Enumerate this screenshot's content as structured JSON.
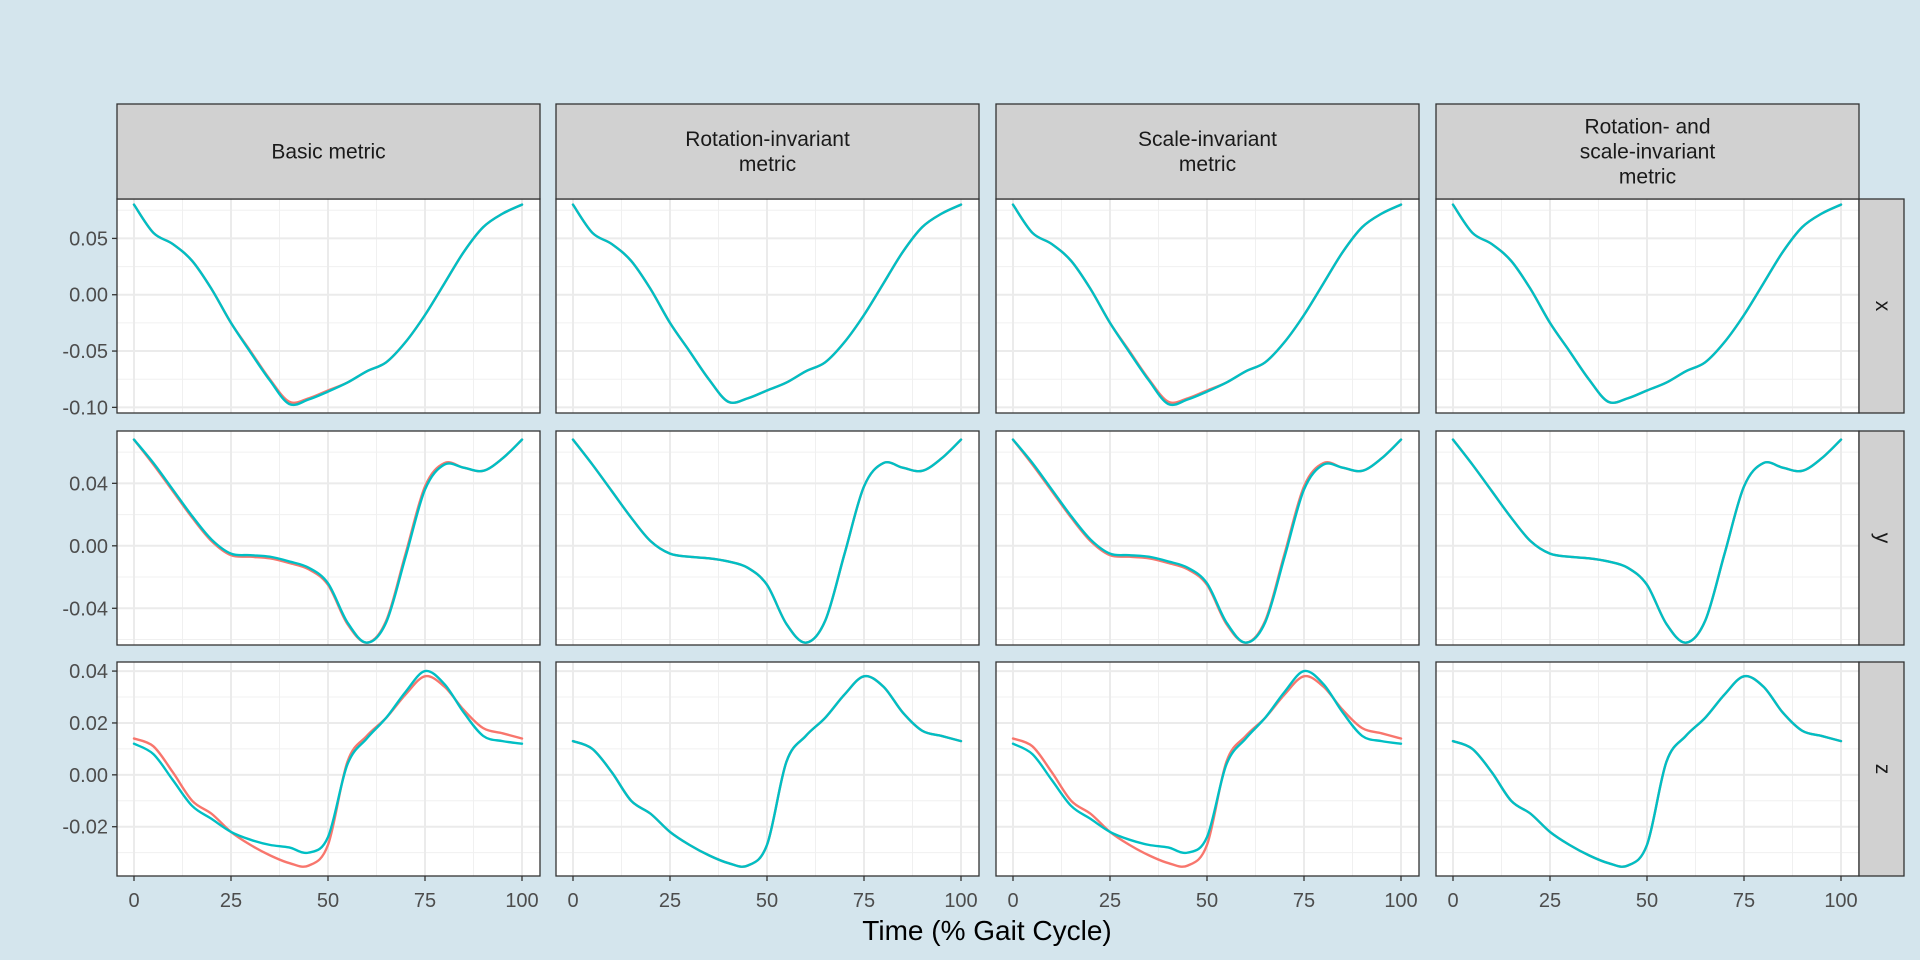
{
  "chart_data": {
    "type": "line",
    "xlabel": "Time (% Gait Cycle)",
    "ylabel": "",
    "xlim": [
      0,
      100
    ],
    "x_ticks": [
      "0",
      "25",
      "50",
      "75",
      "100"
    ],
    "grid": true,
    "legend": "none",
    "columns": [
      {
        "lines": [
          "Basic metric"
        ]
      },
      {
        "lines": [
          "Rotation-invariant",
          "metric"
        ]
      },
      {
        "lines": [
          "Scale-invariant",
          "metric"
        ]
      },
      {
        "lines": [
          "Rotation- and",
          "scale-invariant",
          "metric"
        ]
      }
    ],
    "rows": [
      {
        "label": "x",
        "ylim": [
          -0.105,
          0.085
        ],
        "yticks": [
          0.05,
          0.0,
          -0.05,
          -0.1
        ],
        "ytick_labels": [
          "0.05",
          "0.00",
          "-0.05",
          "-0.10"
        ]
      },
      {
        "label": "y",
        "ylim": [
          -0.0635,
          0.0735
        ],
        "yticks": [
          0.04,
          0.0,
          -0.04
        ],
        "ytick_labels": [
          "0.04",
          "0.00",
          "-0.04"
        ]
      },
      {
        "label": "z",
        "ylim": [
          -0.039,
          0.0435
        ],
        "yticks": [
          0.04,
          0.02,
          0.0,
          -0.02
        ],
        "ytick_labels": [
          "0.04",
          "0.02",
          "0.00",
          "-0.02"
        ]
      }
    ],
    "x": [
      0,
      5,
      10,
      15,
      20,
      25,
      30,
      35,
      40,
      45,
      50,
      55,
      60,
      65,
      70,
      75,
      80,
      85,
      90,
      95,
      100
    ],
    "series": [
      {
        "color": "#F8766D",
        "panels": [
          [
            [
              0.08,
              0.055,
              0.045,
              0.03,
              0.005,
              -0.025,
              -0.05,
              -0.075,
              -0.095,
              -0.092,
              -0.085,
              -0.078,
              -0.068,
              -0.06,
              -0.042,
              -0.018,
              0.01,
              0.038,
              0.06,
              0.072,
              0.08
            ],
            [
              0.068,
              0.052,
              0.035,
              0.018,
              0.003,
              -0.006,
              -0.007,
              -0.008,
              -0.011,
              -0.015,
              -0.025,
              -0.05,
              -0.062,
              -0.048,
              -0.005,
              0.038,
              0.053,
              0.05,
              0.048,
              0.056,
              0.068
            ],
            [
              0.014,
              0.011,
              0.001,
              -0.01,
              -0.015,
              -0.022,
              -0.027,
              -0.031,
              -0.034,
              -0.035,
              -0.027,
              0.005,
              0.015,
              0.022,
              0.031,
              0.038,
              0.034,
              0.025,
              0.018,
              0.016,
              0.014
            ]
          ],
          [
            [
              0.08,
              0.055,
              0.045,
              0.03,
              0.005,
              -0.025,
              -0.05,
              -0.075,
              -0.095,
              -0.092,
              -0.085,
              -0.078,
              -0.068,
              -0.06,
              -0.042,
              -0.018,
              0.01,
              0.038,
              0.06,
              0.072,
              0.08
            ],
            [
              0.068,
              0.052,
              0.035,
              0.018,
              0.003,
              -0.005,
              -0.007,
              -0.008,
              -0.01,
              -0.014,
              -0.025,
              -0.05,
              -0.062,
              -0.048,
              -0.005,
              0.038,
              0.053,
              0.05,
              0.048,
              0.056,
              0.068
            ],
            [
              0.013,
              0.01,
              0.001,
              -0.01,
              -0.015,
              -0.022,
              -0.027,
              -0.031,
              -0.034,
              -0.035,
              -0.027,
              0.005,
              0.015,
              0.022,
              0.031,
              0.038,
              0.034,
              0.024,
              0.017,
              0.015,
              0.013
            ]
          ],
          [
            [
              0.08,
              0.055,
              0.045,
              0.03,
              0.005,
              -0.025,
              -0.05,
              -0.075,
              -0.095,
              -0.092,
              -0.085,
              -0.078,
              -0.068,
              -0.06,
              -0.042,
              -0.018,
              0.01,
              0.038,
              0.06,
              0.072,
              0.08
            ],
            [
              0.068,
              0.052,
              0.035,
              0.018,
              0.003,
              -0.006,
              -0.007,
              -0.008,
              -0.011,
              -0.015,
              -0.025,
              -0.05,
              -0.062,
              -0.048,
              -0.005,
              0.038,
              0.053,
              0.05,
              0.048,
              0.056,
              0.068
            ],
            [
              0.014,
              0.011,
              0.001,
              -0.01,
              -0.015,
              -0.022,
              -0.027,
              -0.031,
              -0.034,
              -0.035,
              -0.027,
              0.005,
              0.015,
              0.022,
              0.031,
              0.038,
              0.034,
              0.025,
              0.018,
              0.016,
              0.014
            ]
          ],
          [
            [
              0.08,
              0.055,
              0.045,
              0.03,
              0.005,
              -0.025,
              -0.05,
              -0.075,
              -0.095,
              -0.092,
              -0.085,
              -0.078,
              -0.068,
              -0.06,
              -0.042,
              -0.018,
              0.01,
              0.038,
              0.06,
              0.072,
              0.08
            ],
            [
              0.068,
              0.052,
              0.035,
              0.018,
              0.003,
              -0.005,
              -0.007,
              -0.008,
              -0.01,
              -0.014,
              -0.025,
              -0.05,
              -0.062,
              -0.048,
              -0.005,
              0.038,
              0.053,
              0.05,
              0.048,
              0.056,
              0.068
            ],
            [
              0.013,
              0.01,
              0.001,
              -0.01,
              -0.015,
              -0.022,
              -0.027,
              -0.031,
              -0.034,
              -0.035,
              -0.027,
              0.005,
              0.015,
              0.022,
              0.031,
              0.038,
              0.034,
              0.024,
              0.017,
              0.015,
              0.013
            ]
          ]
        ]
      },
      {
        "color": "#00BFC4",
        "panels": [
          [
            [
              0.08,
              0.055,
              0.045,
              0.03,
              0.005,
              -0.025,
              -0.051,
              -0.076,
              -0.097,
              -0.093,
              -0.086,
              -0.078,
              -0.068,
              -0.06,
              -0.042,
              -0.018,
              0.01,
              0.038,
              0.06,
              0.072,
              0.08
            ],
            [
              0.068,
              0.053,
              0.036,
              0.019,
              0.004,
              -0.005,
              -0.006,
              -0.007,
              -0.01,
              -0.014,
              -0.024,
              -0.049,
              -0.062,
              -0.049,
              -0.007,
              0.036,
              0.052,
              0.05,
              0.048,
              0.056,
              0.068
            ],
            [
              0.012,
              0.008,
              -0.002,
              -0.012,
              -0.017,
              -0.022,
              -0.025,
              -0.027,
              -0.028,
              -0.03,
              -0.024,
              0.004,
              0.014,
              0.022,
              0.032,
              0.04,
              0.035,
              0.024,
              0.015,
              0.013,
              0.012
            ]
          ],
          [
            [
              0.08,
              0.055,
              0.045,
              0.03,
              0.005,
              -0.025,
              -0.05,
              -0.075,
              -0.095,
              -0.092,
              -0.085,
              -0.078,
              -0.068,
              -0.06,
              -0.042,
              -0.018,
              0.01,
              0.038,
              0.06,
              0.072,
              0.08
            ],
            [
              0.068,
              0.052,
              0.035,
              0.018,
              0.003,
              -0.005,
              -0.007,
              -0.008,
              -0.01,
              -0.014,
              -0.025,
              -0.05,
              -0.062,
              -0.048,
              -0.005,
              0.038,
              0.053,
              0.05,
              0.048,
              0.056,
              0.068
            ],
            [
              0.013,
              0.01,
              0.001,
              -0.01,
              -0.015,
              -0.022,
              -0.027,
              -0.031,
              -0.034,
              -0.035,
              -0.027,
              0.005,
              0.015,
              0.022,
              0.031,
              0.038,
              0.034,
              0.024,
              0.017,
              0.015,
              0.013
            ]
          ],
          [
            [
              0.08,
              0.055,
              0.045,
              0.03,
              0.005,
              -0.025,
              -0.051,
              -0.076,
              -0.097,
              -0.093,
              -0.086,
              -0.078,
              -0.068,
              -0.06,
              -0.042,
              -0.018,
              0.01,
              0.038,
              0.06,
              0.072,
              0.08
            ],
            [
              0.068,
              0.053,
              0.036,
              0.019,
              0.004,
              -0.005,
              -0.006,
              -0.007,
              -0.01,
              -0.014,
              -0.024,
              -0.049,
              -0.062,
              -0.049,
              -0.007,
              0.036,
              0.052,
              0.05,
              0.048,
              0.056,
              0.068
            ],
            [
              0.012,
              0.008,
              -0.002,
              -0.012,
              -0.017,
              -0.022,
              -0.025,
              -0.027,
              -0.028,
              -0.03,
              -0.024,
              0.004,
              0.014,
              0.022,
              0.032,
              0.04,
              0.035,
              0.024,
              0.015,
              0.013,
              0.012
            ]
          ],
          [
            [
              0.08,
              0.055,
              0.045,
              0.03,
              0.005,
              -0.025,
              -0.05,
              -0.075,
              -0.095,
              -0.092,
              -0.085,
              -0.078,
              -0.068,
              -0.06,
              -0.042,
              -0.018,
              0.01,
              0.038,
              0.06,
              0.072,
              0.08
            ],
            [
              0.068,
              0.052,
              0.035,
              0.018,
              0.003,
              -0.005,
              -0.007,
              -0.008,
              -0.01,
              -0.014,
              -0.025,
              -0.05,
              -0.062,
              -0.048,
              -0.005,
              0.038,
              0.053,
              0.05,
              0.048,
              0.056,
              0.068
            ],
            [
              0.013,
              0.01,
              0.001,
              -0.01,
              -0.015,
              -0.022,
              -0.027,
              -0.031,
              -0.034,
              -0.035,
              -0.027,
              0.005,
              0.015,
              0.022,
              0.031,
              0.038,
              0.034,
              0.024,
              0.017,
              0.015,
              0.013
            ]
          ]
        ]
      }
    ]
  }
}
